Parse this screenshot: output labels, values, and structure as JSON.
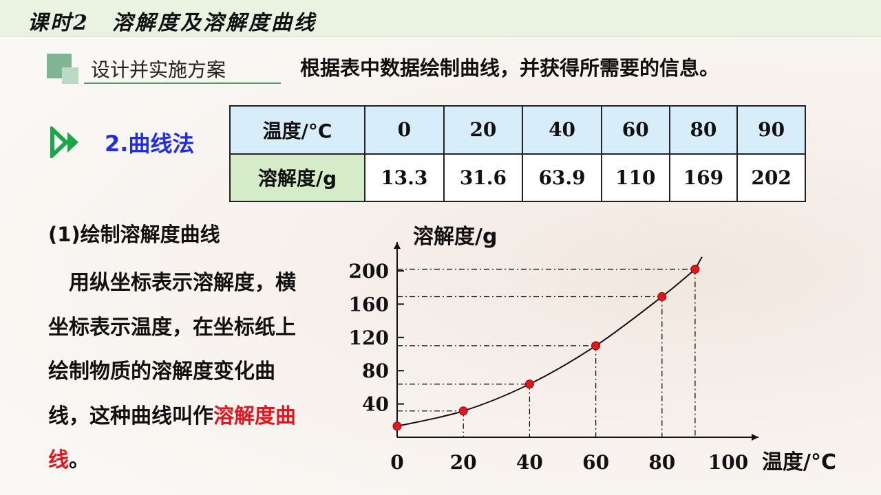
{
  "header": {
    "title": "课时2　溶解度及溶解度曲线"
  },
  "section": {
    "label": "设计并实施方案",
    "headline": "根据表中数据绘制曲线，并获得所需要的信息。"
  },
  "method": {
    "label": "2.曲线法"
  },
  "table": {
    "row1_header": "温度/°C",
    "row2_header": "溶解度/g",
    "temps": [
      "0",
      "20",
      "40",
      "60",
      "80",
      "90"
    ],
    "solubility": [
      "13.3",
      "31.6",
      "63.9",
      "110",
      "169",
      "202"
    ]
  },
  "text": {
    "subheading": "(1)绘制溶解度曲线",
    "para_main": "用纵坐标表示溶解度，横坐标表示温度，在坐标纸上绘制物质的溶解度变化曲线，这种曲线叫作",
    "para_highlight": "溶解度曲线",
    "para_end": "。"
  },
  "colors": {
    "point": "#e8141c",
    "highlight": "#e6141c",
    "method": "#1f2ee6",
    "arrow": "#1aa64a"
  },
  "chart_data": {
    "type": "line",
    "x": [
      0,
      20,
      40,
      60,
      80,
      90
    ],
    "y": [
      13.3,
      31.6,
      63.9,
      110,
      169,
      202
    ],
    "xticks": [
      "0",
      "20",
      "40",
      "60",
      "80",
      "100"
    ],
    "yticks": [
      "200",
      "160",
      "120",
      "80",
      "40"
    ],
    "xlabel": "温度/°C",
    "ylabel": "溶解度/g",
    "xlim": [
      0,
      100
    ],
    "ylim": [
      0,
      200
    ],
    "grid": false
  }
}
